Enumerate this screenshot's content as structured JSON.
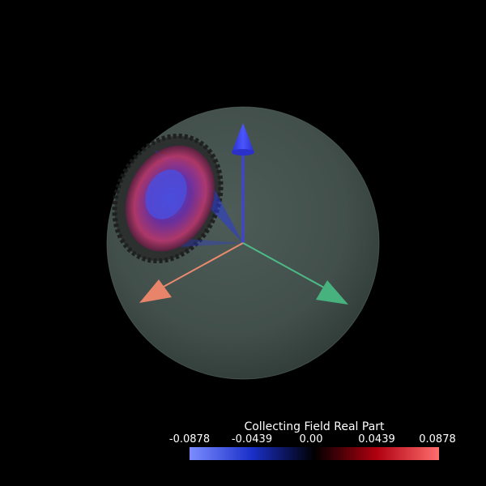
{
  "colorbar": {
    "title": "Collecting Field Real Part",
    "ticks": [
      "-0.0878",
      "-0.0439",
      "0.00",
      "0.0439",
      "0.0878"
    ],
    "min": -0.0878,
    "max": 0.0878,
    "colors": [
      "#7c8cff",
      "#1a2fc8",
      "#000000",
      "#b00010",
      "#ff6e6e"
    ]
  },
  "scene": {
    "sphere_color": "#45534f",
    "axis_colors": {
      "z": "#3a3ff5",
      "x": "#ea8a6e",
      "y": "#4dbb87"
    },
    "patch_colors": [
      "#c04070",
      "#7028a0",
      "#5040d0"
    ]
  }
}
